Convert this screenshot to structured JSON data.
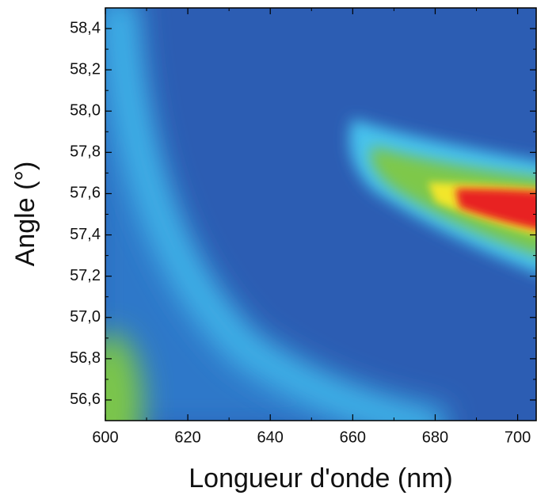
{
  "chart_data": {
    "type": "heatmap",
    "xlabel": "Longueur d'onde (nm)",
    "ylabel": "Angle (°)",
    "xlim": [
      600,
      704.5
    ],
    "xticks": [
      600,
      620,
      640,
      660,
      680,
      700
    ],
    "ylim": [
      56.5,
      58.5
    ],
    "yticks": [
      {
        "value": 56.6,
        "label": "56,6"
      },
      {
        "value": 56.8,
        "label": "56,8"
      },
      {
        "value": 57.0,
        "label": "57,0"
      },
      {
        "value": 57.2,
        "label": "57,2"
      },
      {
        "value": 57.4,
        "label": "57,4"
      },
      {
        "value": 57.6,
        "label": "57,6"
      },
      {
        "value": 57.8,
        "label": "57,8"
      },
      {
        "value": 58.0,
        "label": "58,0"
      },
      {
        "value": 58.2,
        "label": "58,2"
      },
      {
        "value": 58.4,
        "label": "58,4"
      }
    ]
  }
}
